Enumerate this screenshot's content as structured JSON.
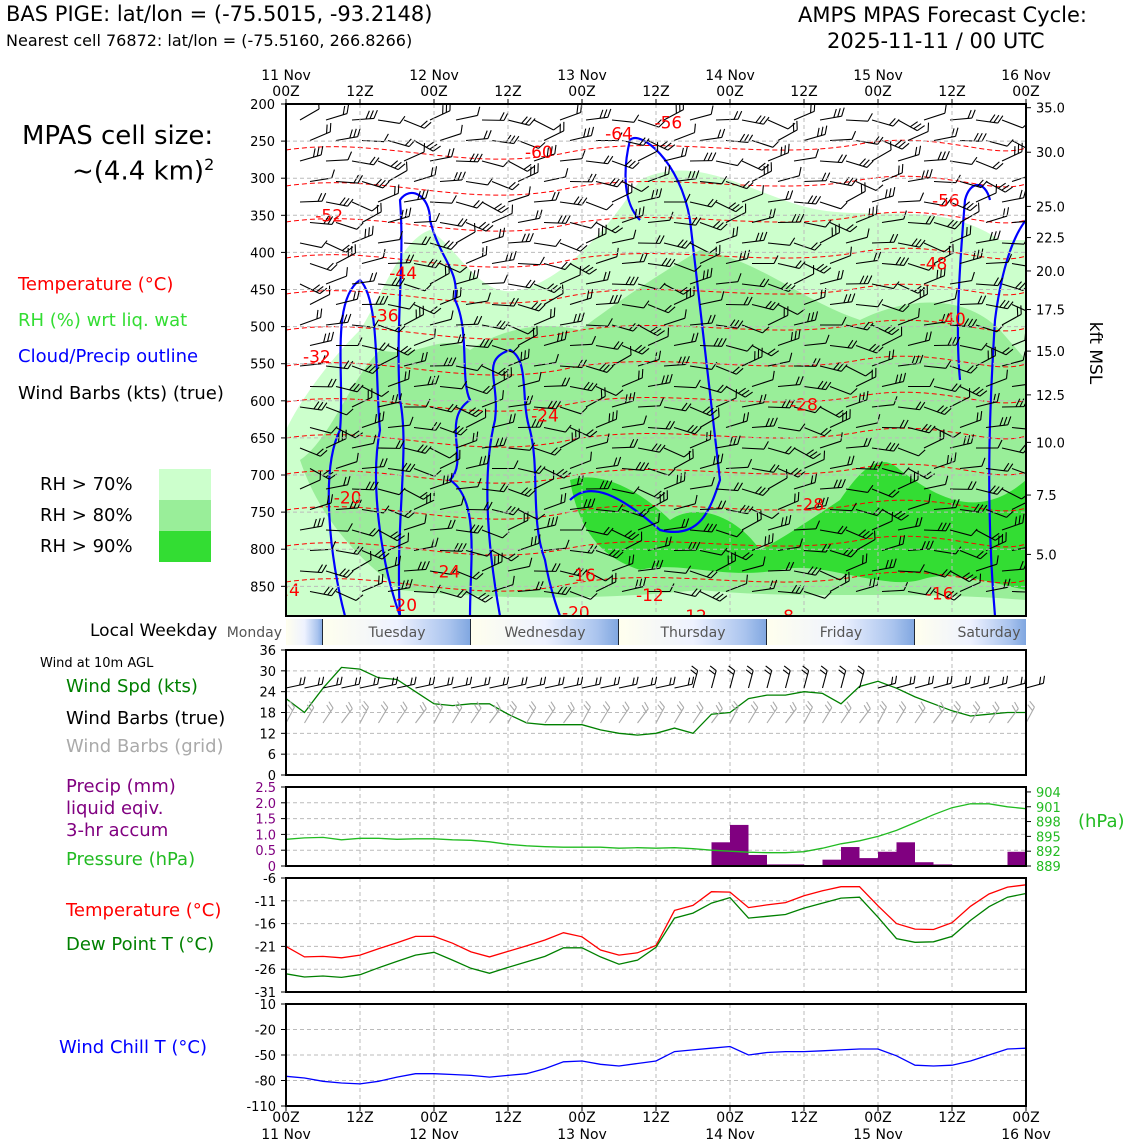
{
  "header": {
    "title": "BAS PIGE: lat/lon = (-75.5015, -93.2148)",
    "subtitle": "Nearest cell 76872: lat/lon = (-75.5160, 266.8266)",
    "cycle_title": "AMPS MPAS Forecast Cycle:",
    "cycle_value": "2025-11-11 / 00 UTC"
  },
  "left_panel": {
    "cell_size_label": "MPAS cell size:",
    "cell_size_value": "~(4.4 km)",
    "cell_size_exp": "2",
    "legend_temperature": "Temperature (°C)",
    "legend_rh": "RH (%) wrt liq. wat",
    "legend_cloud": "Cloud/Precip outline",
    "legend_wind": "Wind Barbs (kts) (true)",
    "rh_70": "RH > 70%",
    "rh_80": "RH > 80%",
    "rh_90": "RH > 90%",
    "local_weekday": "Local Weekday",
    "wind_10m": "Wind at 10m AGL",
    "wind_spd": "Wind Spd (kts)",
    "wind_barbs_true": "Wind Barbs (true)",
    "wind_barbs_grid": "Wind Barbs (grid)",
    "precip_1": "Precip (mm)",
    "precip_2": "liquid eqiv.",
    "precip_3": "3-hr accum",
    "pressure": "Pressure (hPa)",
    "temp": "Temperature (°C)",
    "dewpoint": "Dew Point T (°C)",
    "windchill": "Wind Chill T (°C)"
  },
  "colors": {
    "temperature": "#ff0000",
    "rh": "#33dd33",
    "cloud": "#0000ff",
    "dewpoint": "#008000",
    "precip": "#800080",
    "pressure": "#22bb22",
    "grid_barb": "#aaaaaa",
    "rh70": "#ccffcc",
    "rh80": "#99ee99",
    "rh90": "#33dd33"
  },
  "chart_data": [
    {
      "type": "heatmap",
      "name": "cross-section",
      "x_top_ticks": [
        "11 Nov\n00Z",
        "12Z",
        "12 Nov\n00Z",
        "12Z",
        "13 Nov\n00Z",
        "12Z",
        "14 Nov\n00Z",
        "12Z",
        "15 Nov\n00Z",
        "12Z",
        "16 Nov\n00Z"
      ],
      "xlim_hours": [
        0,
        120
      ],
      "ylim_hpa": [
        890,
        200
      ],
      "y_ticks_hpa": [
        200,
        250,
        300,
        350,
        400,
        450,
        500,
        550,
        600,
        650,
        700,
        750,
        800,
        850
      ],
      "right_axis_label": "kft MSL",
      "right_ticks": [
        {
          "label": "35.0",
          "p": 205
        },
        {
          "label": "30.0",
          "p": 265
        },
        {
          "label": "25.0",
          "p": 338
        },
        {
          "label": "22.5",
          "p": 380
        },
        {
          "label": "20.0",
          "p": 425
        },
        {
          "label": "17.5",
          "p": 477
        },
        {
          "label": "15.0",
          "p": 533
        },
        {
          "label": "12.5",
          "p": 592
        },
        {
          "label": "10.0",
          "p": 656
        },
        {
          "label": "7.5",
          "p": 727
        },
        {
          "label": "5.0",
          "p": 807
        }
      ],
      "temp_labels": [
        {
          "text": "-64",
          "h": 54,
          "p": 240
        },
        {
          "text": "-56",
          "h": 62,
          "p": 225
        },
        {
          "text": "-60",
          "h": 41,
          "p": 265
        },
        {
          "text": "-56",
          "h": 107,
          "p": 330
        },
        {
          "text": "-52",
          "h": 7,
          "p": 350
        },
        {
          "text": "-48",
          "h": 105,
          "p": 415
        },
        {
          "text": "-44",
          "h": 19,
          "p": 428
        },
        {
          "text": "-40",
          "h": 108,
          "p": 490
        },
        {
          "text": "-36",
          "h": 16,
          "p": 485
        },
        {
          "text": "-32",
          "h": 5,
          "p": 540
        },
        {
          "text": "-28",
          "h": 84,
          "p": 605
        },
        {
          "text": "-24",
          "h": 42,
          "p": 620
        },
        {
          "text": "-20",
          "h": 10,
          "p": 730
        },
        {
          "text": "-24",
          "h": 26,
          "p": 830
        },
        {
          "text": "-16",
          "h": 48,
          "p": 835
        },
        {
          "text": "-24",
          "h": 0,
          "p": 855
        },
        {
          "text": "-20",
          "h": 19,
          "p": 875
        },
        {
          "text": "-20",
          "h": 47,
          "p": 885
        },
        {
          "text": "-12",
          "h": 59,
          "p": 862
        },
        {
          "text": "-12",
          "h": 66,
          "p": 890
        },
        {
          "text": "-8",
          "h": 81,
          "p": 890
        },
        {
          "text": "-16",
          "h": 106,
          "p": 860
        },
        {
          "text": "-28",
          "h": 85,
          "p": 740
        }
      ]
    },
    {
      "type": "table",
      "name": "local-weekday",
      "days": [
        {
          "label": "Monday",
          "start": -6,
          "end": 6
        },
        {
          "label": "Tuesday",
          "start": 6,
          "end": 30
        },
        {
          "label": "Wednesday",
          "start": 30,
          "end": 54
        },
        {
          "label": "Thursday",
          "start": 54,
          "end": 78
        },
        {
          "label": "Friday",
          "start": 78,
          "end": 102
        },
        {
          "label": "Saturday",
          "start": 102,
          "end": 126
        }
      ]
    },
    {
      "type": "line",
      "name": "wind-speed",
      "ylabel": "Wind Spd (kts)",
      "ylim": [
        0,
        36
      ],
      "y_ticks": [
        0,
        6,
        12,
        18,
        24,
        30,
        36
      ],
      "x_hours": [
        0,
        3,
        6,
        9,
        12,
        15,
        18,
        21,
        24,
        27,
        30,
        33,
        36,
        39,
        42,
        45,
        48,
        51,
        54,
        57,
        60,
        63,
        66,
        69,
        72,
        75,
        78,
        81,
        84,
        87,
        90,
        93,
        96,
        99,
        102,
        105,
        108,
        111,
        114,
        117,
        120
      ],
      "values": [
        22,
        18,
        25,
        31,
        30.5,
        28,
        27.5,
        24,
        20.5,
        20,
        20.5,
        20.5,
        17.5,
        15,
        14.5,
        14.5,
        14.5,
        13,
        12,
        11.5,
        12,
        13.5,
        12,
        17.5,
        18,
        22,
        23,
        23,
        24,
        23.5,
        20.5,
        25.5,
        27,
        25,
        22.5,
        20.5,
        18.5,
        17,
        17.5,
        18,
        18
      ]
    },
    {
      "type": "bar",
      "name": "precip",
      "ylabel": "Precip (mm)",
      "ylim": [
        0,
        2.5
      ],
      "y_ticks": [
        0,
        0.5,
        1.0,
        1.5,
        2.0,
        2.5
      ],
      "y_tick_labels": [
        "0",
        "0.5",
        "1.0",
        "1.5",
        "2.0",
        "2.5"
      ],
      "bars": [
        {
          "start": 12,
          "end": 15,
          "value": 0.03
        },
        {
          "start": 15,
          "end": 18,
          "value": 0.03
        },
        {
          "start": 21,
          "end": 24,
          "value": 0.02
        },
        {
          "start": 69,
          "end": 72,
          "value": 0.75
        },
        {
          "start": 72,
          "end": 75,
          "value": 1.3
        },
        {
          "start": 75,
          "end": 78,
          "value": 0.35
        },
        {
          "start": 78,
          "end": 81,
          "value": 0.05
        },
        {
          "start": 81,
          "end": 84,
          "value": 0.05
        },
        {
          "start": 87,
          "end": 90,
          "value": 0.2
        },
        {
          "start": 90,
          "end": 93,
          "value": 0.6
        },
        {
          "start": 93,
          "end": 96,
          "value": 0.25
        },
        {
          "start": 96,
          "end": 99,
          "value": 0.45
        },
        {
          "start": 99,
          "end": 102,
          "value": 0.75
        },
        {
          "start": 102,
          "end": 105,
          "value": 0.12
        },
        {
          "start": 105,
          "end": 108,
          "value": 0.05
        },
        {
          "start": 117,
          "end": 120,
          "value": 0.45
        }
      ]
    },
    {
      "type": "line",
      "name": "pressure",
      "ylabel": "(hPa)",
      "ylim": [
        889,
        905
      ],
      "y_ticks": [
        889,
        892,
        895,
        898,
        901,
        904
      ],
      "values": [
        894.4,
        894.7,
        894.8,
        894.3,
        894.6,
        894.6,
        894.4,
        894.5,
        894.5,
        894.3,
        894.2,
        893.9,
        893.4,
        893.1,
        892.9,
        892.8,
        892.8,
        892.8,
        892.6,
        892.7,
        892.6,
        892.7,
        892.5,
        892.2,
        892.0,
        891.8,
        891.7,
        891.7,
        891.9,
        892.6,
        893.5,
        894.1,
        895.0,
        896.2,
        897.8,
        899.4,
        900.8,
        901.6,
        901.6,
        901.0,
        900.6
      ]
    },
    {
      "type": "line",
      "name": "temp-dewpoint",
      "ylim": [
        -31,
        -6
      ],
      "y_ticks": [
        -31,
        -26,
        -21,
        -16,
        -11,
        -6
      ],
      "series": [
        {
          "name": "Temperature (°C)",
          "values": [
            -21,
            -23.3,
            -23.2,
            -23.5,
            -22.9,
            -21.5,
            -20.2,
            -18.8,
            -18.8,
            -20.3,
            -22.2,
            -23.3,
            -22.1,
            -20.9,
            -19.6,
            -18,
            -18.9,
            -21.8,
            -22.9,
            -22.4,
            -20.8,
            -13.1,
            -12,
            -9,
            -9.1,
            -12.5,
            -11.9,
            -11.4,
            -9.9,
            -8.8,
            -7.9,
            -7.9,
            -12.1,
            -16,
            -17.2,
            -17.3,
            -15.8,
            -12.2,
            -9.5,
            -8,
            -7.5
          ]
        },
        {
          "name": "Dew Point T (°C)",
          "values": [
            -27,
            -27.7,
            -27.5,
            -27.8,
            -27.2,
            -25.7,
            -24.3,
            -22.9,
            -22.3,
            -24,
            -25.8,
            -26.9,
            -25.6,
            -24.4,
            -23.2,
            -21.3,
            -21.3,
            -23.3,
            -24.9,
            -24,
            -21.2,
            -14.8,
            -13.7,
            -11.5,
            -10.3,
            -14.8,
            -14.4,
            -14,
            -12.6,
            -11.5,
            -10.4,
            -10.2,
            -14.6,
            -19.3,
            -20.1,
            -20,
            -18.8,
            -15.3,
            -12.3,
            -10.2,
            -9.4
          ]
        }
      ]
    },
    {
      "type": "line",
      "name": "wind-chill",
      "ylabel": "Wind Chill T (°C)",
      "ylim": [
        -110,
        10
      ],
      "y_ticks": [
        -110,
        -80,
        -50,
        -20,
        10
      ],
      "values": [
        -75,
        -77,
        -81,
        -83,
        -84,
        -81,
        -76,
        -72,
        -72,
        -73,
        -74,
        -76,
        -74,
        -72,
        -66,
        -58,
        -57,
        -61,
        -63,
        -60,
        -57,
        -46,
        -44,
        -42,
        -40,
        -50,
        -47,
        -46,
        -46,
        -45,
        -44,
        -43,
        -43,
        -51,
        -62,
        -63,
        -62,
        -57,
        -50,
        -43,
        -42
      ]
    }
  ],
  "bottom_axis": {
    "ticks": [
      "00Z",
      "12Z",
      "00Z",
      "12Z",
      "00Z",
      "12Z",
      "00Z",
      "12Z",
      "00Z",
      "12Z",
      "00Z"
    ],
    "dates": [
      "11 Nov",
      "",
      "12 Nov",
      "",
      "13 Nov",
      "",
      "14 Nov",
      "",
      "15 Nov",
      "",
      "16 Nov"
    ]
  },
  "top_axis": {
    "ticks": [
      "00Z",
      "12Z",
      "00Z",
      "12Z",
      "00Z",
      "12Z",
      "00Z",
      "12Z",
      "00Z",
      "12Z",
      "00Z"
    ],
    "dates": [
      "11 Nov",
      "",
      "12 Nov",
      "",
      "13 Nov",
      "",
      "14 Nov",
      "",
      "15 Nov",
      "",
      "16 Nov"
    ]
  }
}
